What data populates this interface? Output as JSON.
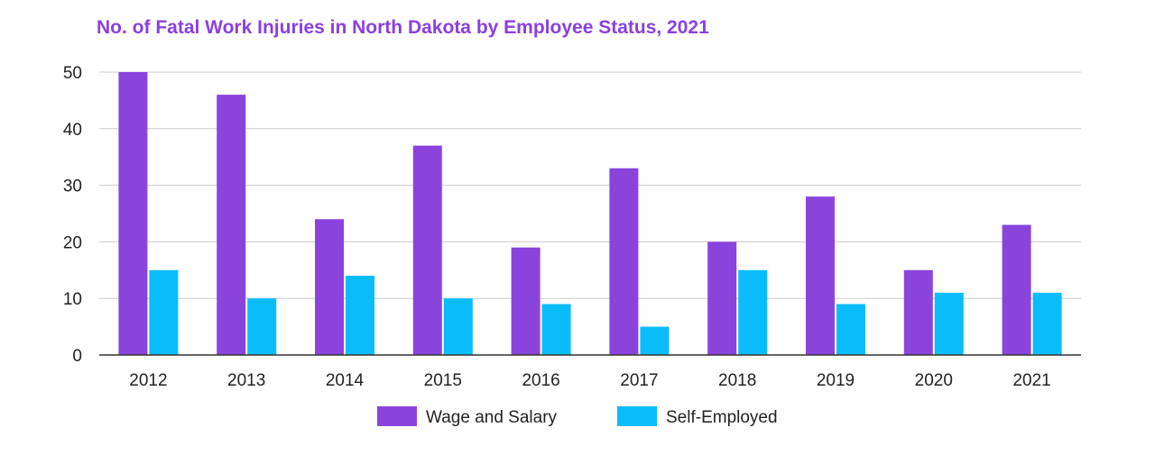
{
  "chart_data": {
    "type": "bar",
    "title": "No. of Fatal Work Injuries in North Dakota by Employee Status, 2021",
    "categories": [
      "2012",
      "2013",
      "2014",
      "2015",
      "2016",
      "2017",
      "2018",
      "2019",
      "2020",
      "2021"
    ],
    "series": [
      {
        "name": "Wage and Salary",
        "color": "#8a44dc",
        "values": [
          50,
          46,
          24,
          37,
          19,
          33,
          20,
          28,
          15,
          23
        ]
      },
      {
        "name": "Self-Employed",
        "color": "#0abcfa",
        "values": [
          15,
          10,
          14,
          10,
          9,
          5,
          15,
          9,
          11,
          11
        ]
      }
    ],
    "ylim": [
      0,
      50
    ],
    "yticks": [
      "0",
      "10",
      "20",
      "30",
      "40",
      "50"
    ],
    "xlabel": "",
    "ylabel": "",
    "grid": true,
    "legend_position": "bottom",
    "title_color": "#8a40e0"
  }
}
